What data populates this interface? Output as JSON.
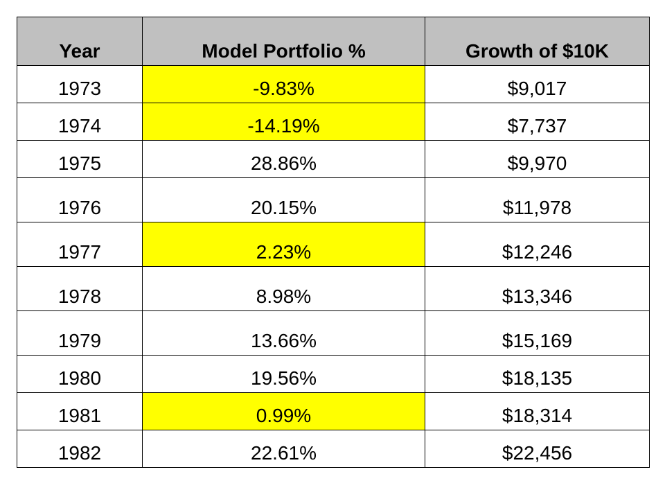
{
  "chart_data": {
    "type": "table",
    "columns": [
      "Year",
      "Model Portfolio %",
      "Growth of $10K"
    ],
    "rows": [
      {
        "year": "1973",
        "pct": "-9.83%",
        "growth": "$9,017",
        "highlight": true
      },
      {
        "year": "1974",
        "pct": "-14.19%",
        "growth": "$7,737",
        "highlight": true
      },
      {
        "year": "1975",
        "pct": "28.86%",
        "growth": "$9,970",
        "highlight": false
      },
      {
        "year": "1976",
        "pct": "20.15%",
        "growth": "$11,978",
        "highlight": false
      },
      {
        "year": "1977",
        "pct": "2.23%",
        "growth": "$12,246",
        "highlight": true
      },
      {
        "year": "1978",
        "pct": "8.98%",
        "growth": "$13,346",
        "highlight": false
      },
      {
        "year": "1979",
        "pct": "13.66%",
        "growth": "$15,169",
        "highlight": false
      },
      {
        "year": "1980",
        "pct": "19.56%",
        "growth": "$18,135",
        "highlight": false
      },
      {
        "year": "1981",
        "pct": "0.99%",
        "growth": "$18,314",
        "highlight": true
      },
      {
        "year": "1982",
        "pct": "22.61%",
        "growth": "$22,456",
        "highlight": false
      }
    ],
    "header_color": "#c0c0c0",
    "highlight_color": "#ffff00"
  }
}
